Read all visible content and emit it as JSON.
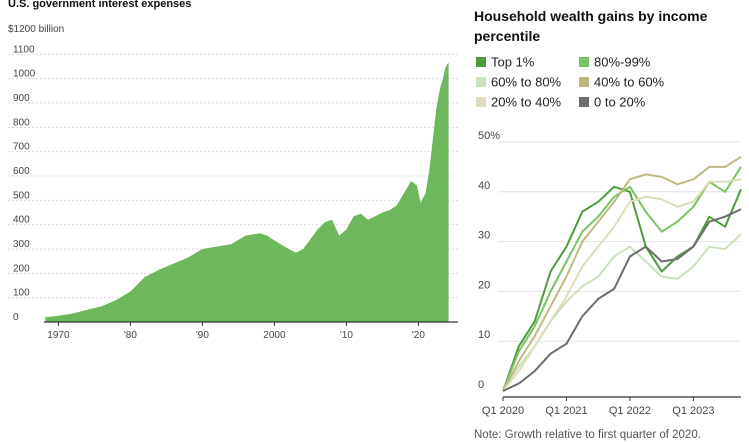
{
  "chart_data": [
    {
      "type": "area",
      "title": "U.S. government interest expenses",
      "unit_label": "$1200 billion",
      "ylim": [
        0,
        1200
      ],
      "xlim": [
        1968,
        2025.5
      ],
      "y_ticks": [
        0,
        100,
        200,
        300,
        400,
        500,
        600,
        700,
        800,
        900,
        1000,
        1100
      ],
      "x_ticks": [
        {
          "value": 1970,
          "label": "1970"
        },
        {
          "value": 1980,
          "label": "'80"
        },
        {
          "value": 1990,
          "label": "'90"
        },
        {
          "value": 2000,
          "label": "2000"
        },
        {
          "value": 2010,
          "label": "'10"
        },
        {
          "value": 2020,
          "label": "'20"
        }
      ],
      "color": "#6cb85a",
      "x": [
        1968.2,
        1970,
        1972,
        1974,
        1976,
        1978,
        1980,
        1981,
        1982,
        1984,
        1986,
        1988,
        1990,
        1992,
        1994,
        1996,
        1998,
        1999,
        2000,
        2002,
        2003,
        2004,
        2006,
        2007,
        2008,
        2009,
        2010,
        2011,
        2012,
        2013,
        2014,
        2015,
        2016,
        2017,
        2018,
        2019,
        2019.8,
        2020.3,
        2021,
        2021.5,
        2022,
        2022.5,
        2023,
        2023.4,
        2023.7,
        2024,
        2024.2
      ],
      "y": [
        20,
        25,
        35,
        50,
        65,
        90,
        125,
        155,
        185,
        215,
        240,
        265,
        300,
        310,
        320,
        355,
        365,
        355,
        335,
        300,
        285,
        300,
        380,
        410,
        420,
        355,
        380,
        435,
        445,
        420,
        435,
        450,
        460,
        480,
        530,
        580,
        560,
        490,
        530,
        620,
        750,
        880,
        960,
        1000,
        1040,
        1060,
        1065
      ]
    },
    {
      "type": "line",
      "title": "Household wealth gains by income percentile",
      "ylabel_top": "50%",
      "ylim": [
        0,
        50
      ],
      "y_ticks": [
        {
          "value": 0,
          "label": "0"
        },
        {
          "value": 10,
          "label": "10"
        },
        {
          "value": 20,
          "label": "20"
        },
        {
          "value": 30,
          "label": "30"
        },
        {
          "value": 40,
          "label": "40"
        },
        {
          "value": 50,
          "label": "50%"
        }
      ],
      "x_tick_labels": [
        {
          "index": 0,
          "label": "Q1 2020"
        },
        {
          "index": 4,
          "label": "Q1 2021"
        },
        {
          "index": 8,
          "label": "Q1 2022"
        },
        {
          "index": 12,
          "label": "Q1 2023"
        }
      ],
      "legend": {
        "placement": "top",
        "columns": 2
      },
      "note": "Note: Growth relative to first quarter of 2020.",
      "series": [
        {
          "name": "Top 1%",
          "color": "#4f9a3f",
          "values": [
            0,
            9,
            14,
            24,
            29,
            36,
            38,
            41,
            40,
            29,
            24,
            27,
            29,
            35,
            33,
            40.5
          ]
        },
        {
          "name": "80%-99%",
          "color": "#79c462",
          "values": [
            0,
            8,
            13,
            20,
            26,
            32,
            35,
            39,
            41,
            36,
            32,
            34,
            37,
            42,
            40,
            45
          ]
        },
        {
          "name": "60% to 80%",
          "color": "#c9e2bd",
          "values": [
            0,
            5,
            9,
            14,
            18,
            21,
            23,
            27,
            29,
            26,
            23,
            22.5,
            25,
            29,
            28.5,
            31.5
          ]
        },
        {
          "name": "40% to 60%",
          "color": "#bfb981",
          "values": [
            0,
            6,
            11,
            17,
            23,
            30,
            34,
            38,
            42.5,
            43.5,
            43,
            41.5,
            42.5,
            45,
            45,
            47
          ]
        },
        {
          "name": "20% to 40%",
          "color": "#dfdcbb",
          "values": [
            0,
            4,
            9,
            14,
            19,
            25,
            29,
            33,
            38,
            39,
            38.5,
            37,
            38,
            42,
            42,
            42.5
          ]
        },
        {
          "name": "0 to 20%",
          "color": "#6e6e6e",
          "values": [
            0,
            1.5,
            4,
            7.5,
            9.5,
            15,
            18.5,
            20.5,
            27,
            29,
            26,
            26.5,
            29,
            34,
            35,
            36.5
          ]
        }
      ]
    }
  ]
}
